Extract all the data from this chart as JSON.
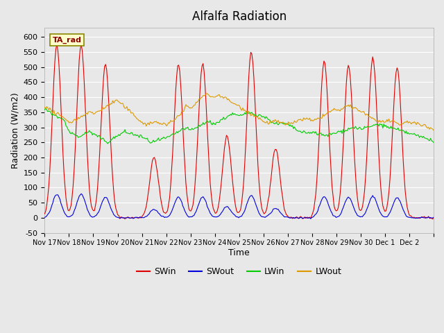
{
  "title": "Alfalfa Radiation",
  "xlabel": "Time",
  "ylabel": "Radiation (W/m2)",
  "annotation": "TA_rad",
  "ylim": [
    -50,
    630
  ],
  "plot_bg_color": "#e8e8e8",
  "grid_color": "#ffffff",
  "tick_labels": [
    "Nov 17",
    "Nov 18",
    "Nov 19",
    "Nov 20",
    "Nov 21",
    "Nov 22",
    "Nov 23",
    "Nov 24",
    "Nov 25",
    "Nov 26",
    "Nov 27",
    "Nov 28",
    "Nov 29",
    "Nov 30",
    "Dec 1",
    "Dec 2"
  ],
  "colors": {
    "SWin": "#dd0000",
    "SWout": "#0000dd",
    "LWin": "#00cc00",
    "LWout": "#dd9900"
  },
  "swin_peaks": [
    575,
    575,
    510,
    0,
    200,
    510,
    510,
    270,
    550,
    230,
    0,
    520,
    505,
    530,
    500,
    0
  ],
  "n_days": 16
}
